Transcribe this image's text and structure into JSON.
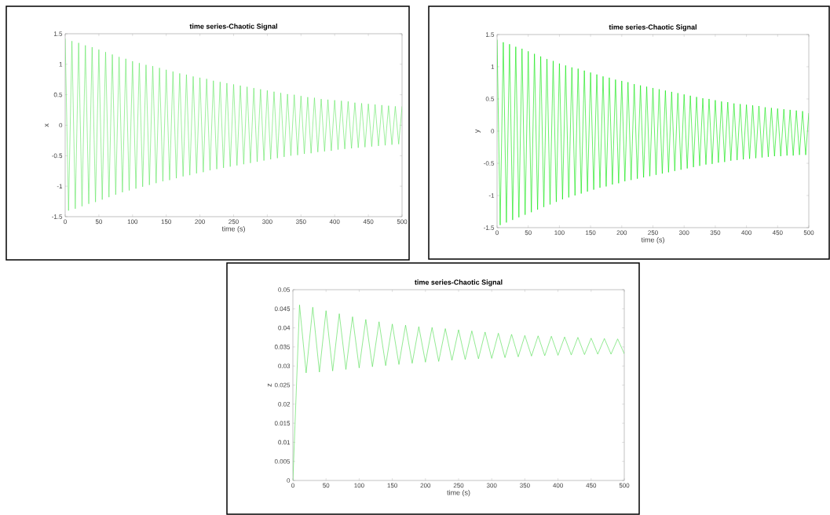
{
  "chart_data": [
    {
      "type": "line",
      "title": "time series-Chaotic Signal",
      "xlabel": "time (s)",
      "ylabel": "x",
      "grid": false,
      "line_style": "solid",
      "marker": "none",
      "x": [
        0,
        5,
        10,
        15,
        20,
        25,
        30,
        35,
        40,
        45,
        50,
        55,
        60,
        65,
        70,
        75,
        80,
        85,
        90,
        95,
        100,
        105,
        110,
        115,
        120,
        125,
        130,
        135,
        140,
        145,
        150,
        155,
        160,
        165,
        170,
        175,
        180,
        185,
        190,
        195,
        200,
        205,
        210,
        215,
        220,
        225,
        230,
        235,
        240,
        245,
        250,
        255,
        260,
        265,
        270,
        275,
        280,
        285,
        290,
        295,
        300,
        305,
        310,
        315,
        320,
        325,
        330,
        335,
        340,
        345,
        350,
        355,
        360,
        365,
        370,
        375,
        380,
        385,
        390,
        395,
        400,
        405,
        410,
        415,
        420,
        425,
        430,
        435,
        440,
        445,
        450,
        455,
        460,
        465,
        470,
        475,
        480,
        485,
        490,
        495,
        500
      ],
      "series": [
        {
          "color": "#5ce65c",
          "values": [
            1.42,
            -1.4,
            1.38,
            -1.37,
            1.35,
            -1.33,
            1.31,
            -1.29,
            1.28,
            -1.26,
            1.24,
            -1.22,
            1.2,
            -1.18,
            1.16,
            -1.14,
            1.12,
            -1.1,
            1.09,
            -1.07,
            1.05,
            -1.04,
            1.02,
            -1.01,
            0.99,
            -0.98,
            0.97,
            -0.95,
            0.94,
            -0.92,
            0.91,
            -0.9,
            0.88,
            -0.87,
            0.85,
            -0.84,
            0.83,
            -0.82,
            0.8,
            -0.79,
            0.78,
            -0.77,
            0.76,
            -0.74,
            0.73,
            -0.72,
            0.71,
            -0.7,
            0.69,
            -0.68,
            0.67,
            -0.66,
            0.65,
            -0.64,
            0.63,
            -0.62,
            0.61,
            -0.6,
            0.59,
            -0.58,
            0.57,
            -0.56,
            0.55,
            -0.54,
            0.53,
            -0.52,
            0.51,
            -0.5,
            0.5,
            -0.49,
            0.48,
            -0.47,
            0.46,
            -0.46,
            0.45,
            -0.44,
            0.43,
            -0.43,
            0.42,
            -0.42,
            0.41,
            -0.4,
            0.4,
            -0.39,
            0.39,
            -0.38,
            0.37,
            -0.37,
            0.36,
            -0.36,
            0.35,
            -0.35,
            0.34,
            -0.34,
            0.33,
            -0.33,
            0.32,
            -0.32,
            0.31,
            -0.31,
            0.31
          ]
        }
      ],
      "xlim": [
        0,
        500
      ],
      "ylim": [
        -1.5,
        1.5
      ],
      "xticks": [
        0,
        50,
        100,
        150,
        200,
        250,
        300,
        350,
        400,
        450,
        500
      ],
      "yticks": [
        -1.5,
        -1,
        -0.5,
        0,
        0.5,
        1,
        1.5
      ]
    },
    {
      "type": "line",
      "title": "time series-Chaotic Signal",
      "xlabel": "time (s)",
      "ylabel": "y",
      "grid": false,
      "line_style": "solid",
      "marker": "none",
      "x": [
        0,
        5,
        10,
        15,
        20,
        25,
        30,
        35,
        40,
        45,
        50,
        55,
        60,
        65,
        70,
        75,
        80,
        85,
        90,
        95,
        100,
        105,
        110,
        115,
        120,
        125,
        130,
        135,
        140,
        145,
        150,
        155,
        160,
        165,
        170,
        175,
        180,
        185,
        190,
        195,
        200,
        205,
        210,
        215,
        220,
        225,
        230,
        235,
        240,
        245,
        250,
        255,
        260,
        265,
        270,
        275,
        280,
        285,
        290,
        295,
        300,
        305,
        310,
        315,
        320,
        325,
        330,
        335,
        340,
        345,
        350,
        355,
        360,
        365,
        370,
        375,
        380,
        385,
        390,
        395,
        400,
        405,
        410,
        415,
        420,
        425,
        430,
        435,
        440,
        445,
        450,
        455,
        460,
        465,
        470,
        475,
        480,
        485,
        490,
        495,
        500
      ],
      "series": [
        {
          "color": "#00e600",
          "values": [
            1.42,
            -1.46,
            1.38,
            -1.42,
            1.35,
            -1.38,
            1.31,
            -1.34,
            1.28,
            -1.3,
            1.24,
            -1.26,
            1.2,
            -1.22,
            1.16,
            -1.18,
            1.12,
            -1.14,
            1.09,
            -1.1,
            1.05,
            -1.06,
            1.02,
            -1.03,
            0.99,
            -1.0,
            0.97,
            -0.97,
            0.94,
            -0.94,
            0.91,
            -0.91,
            0.88,
            -0.88,
            0.85,
            -0.86,
            0.83,
            -0.83,
            0.8,
            -0.81,
            0.78,
            -0.78,
            0.76,
            -0.76,
            0.73,
            -0.74,
            0.71,
            -0.72,
            0.69,
            -0.7,
            0.67,
            -0.68,
            0.65,
            -0.66,
            0.63,
            -0.64,
            0.61,
            -0.62,
            0.59,
            -0.6,
            0.57,
            -0.58,
            0.55,
            -0.56,
            0.53,
            -0.54,
            0.51,
            -0.52,
            0.5,
            -0.51,
            0.48,
            -0.49,
            0.46,
            -0.48,
            0.45,
            -0.46,
            0.43,
            -0.45,
            0.42,
            -0.44,
            0.41,
            -0.43,
            0.4,
            -0.42,
            0.39,
            -0.41,
            0.37,
            -0.4,
            0.36,
            -0.39,
            0.35,
            -0.39,
            0.34,
            -0.38,
            0.33,
            -0.38,
            0.32,
            -0.37,
            0.31,
            -0.37,
            0.28
          ]
        }
      ],
      "xlim": [
        0,
        500
      ],
      "ylim": [
        -1.5,
        1.5
      ],
      "xticks": [
        0,
        50,
        100,
        150,
        200,
        250,
        300,
        350,
        400,
        450,
        500
      ],
      "yticks": [
        -1.5,
        -1,
        -0.5,
        0,
        0.5,
        1,
        1.5
      ]
    },
    {
      "type": "line",
      "title": "time series-Chaotic Signal",
      "xlabel": "time (s)",
      "ylabel": "z",
      "grid": false,
      "line_style": "solid",
      "marker": "none",
      "x": [
        0,
        10,
        20,
        30,
        40,
        50,
        60,
        70,
        80,
        90,
        100,
        110,
        120,
        130,
        140,
        150,
        160,
        170,
        180,
        190,
        200,
        210,
        220,
        230,
        240,
        250,
        260,
        270,
        280,
        290,
        300,
        310,
        320,
        330,
        340,
        350,
        360,
        370,
        380,
        390,
        400,
        410,
        420,
        430,
        440,
        450,
        460,
        470,
        480,
        490,
        500
      ],
      "series": [
        {
          "color": "#4cdc4c",
          "values": [
            0,
            0.046,
            0.0282,
            0.0454,
            0.0284,
            0.0445,
            0.0287,
            0.0437,
            0.0291,
            0.0429,
            0.0295,
            0.0422,
            0.0298,
            0.0416,
            0.0301,
            0.041,
            0.0304,
            0.0407,
            0.0307,
            0.0403,
            0.031,
            0.0401,
            0.0312,
            0.0398,
            0.0315,
            0.0395,
            0.0317,
            0.0392,
            0.0319,
            0.0389,
            0.032,
            0.0386,
            0.0322,
            0.0383,
            0.0324,
            0.038,
            0.0326,
            0.0379,
            0.0327,
            0.0378,
            0.0328,
            0.0376,
            0.0329,
            0.0375,
            0.033,
            0.0373,
            0.0331,
            0.0372,
            0.0331,
            0.0371,
            0.0332
          ]
        }
      ],
      "xlim": [
        0,
        500
      ],
      "ylim": [
        0,
        0.05
      ],
      "xticks": [
        0,
        50,
        100,
        150,
        200,
        250,
        300,
        350,
        400,
        450,
        500
      ],
      "yticks": [
        0,
        0.005,
        0.01,
        0.015,
        0.02,
        0.025,
        0.03,
        0.035,
        0.04,
        0.045,
        0.05
      ]
    }
  ]
}
